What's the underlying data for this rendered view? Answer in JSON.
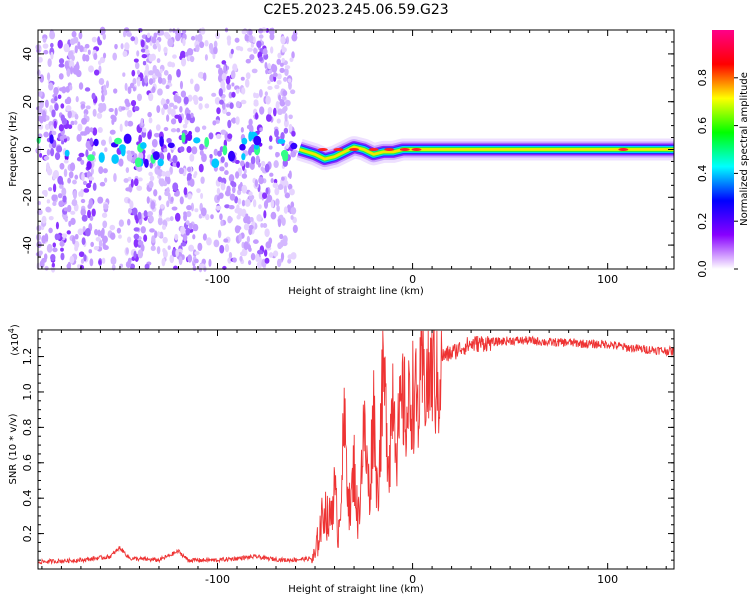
{
  "title": "C2E5.2023.245.06.59.G23",
  "chart_data": [
    {
      "type": "heatmap",
      "xlabel": "Height of straight line (km)",
      "ylabel": "Frequency (Hz)",
      "xlim": [
        -192,
        134
      ],
      "ylim": [
        -50,
        50
      ],
      "x_ticks": [
        -100,
        0,
        100
      ],
      "y_ticks": [
        -40,
        -20,
        0,
        20,
        40
      ],
      "noise_region_x": [
        -192,
        -60
      ],
      "ridge_points": [
        {
          "x": -58,
          "y": 0
        },
        {
          "x": -50,
          "y": -2
        },
        {
          "x": -45,
          "y": -4
        },
        {
          "x": -40,
          "y": -3
        },
        {
          "x": -35,
          "y": -1
        },
        {
          "x": -30,
          "y": 1
        },
        {
          "x": -25,
          "y": 0
        },
        {
          "x": -20,
          "y": -2
        },
        {
          "x": -15,
          "y": -1
        },
        {
          "x": -10,
          "y": -1
        },
        {
          "x": -5,
          "y": 0
        },
        {
          "x": 0,
          "y": 0
        },
        {
          "x": 20,
          "y": 0
        },
        {
          "x": 50,
          "y": 0
        },
        {
          "x": 90,
          "y": 0
        },
        {
          "x": 110,
          "y": 0
        },
        {
          "x": 134,
          "y": 0
        }
      ],
      "colorbar": {
        "label": "Normalized spectral amplitude",
        "range": [
          0,
          1
        ],
        "ticks": [
          "0.0",
          "0.2",
          "0.4",
          "0.6",
          "0.8"
        ],
        "colors": [
          "#ffffff",
          "#8800ff",
          "#0000ff",
          "#00ffff",
          "#00ff00",
          "#ffff00",
          "#ff0000",
          "#ff0088"
        ]
      }
    },
    {
      "type": "line",
      "xlabel": "Height of straight line (km)",
      "ylabel": "SNR (10 * v/v)",
      "scale_note": "(x10",
      "scale_exp": "4",
      "scale_close": ")",
      "xlim": [
        -192,
        134
      ],
      "ylim": [
        0,
        1.35
      ],
      "x_ticks": [
        -100,
        0,
        100
      ],
      "y_ticks": [
        "0.2",
        "0.4",
        "0.6",
        "0.8",
        "1.0",
        "1.2"
      ],
      "color": "#ee3333",
      "series": [
        {
          "x": [
            -192,
            -170,
            -155,
            -150,
            -145,
            -130,
            -120,
            -115,
            -100,
            -80,
            -75,
            -65,
            -50,
            -48,
            -45,
            -43,
            -40,
            -38,
            -35,
            -32,
            -30,
            -28,
            -25,
            -22,
            -20,
            -18,
            -15,
            -12,
            -10,
            -8,
            -5,
            -3,
            0,
            3,
            5,
            8,
            10,
            13,
            15,
            20,
            25,
            30,
            40,
            50,
            60,
            70,
            80,
            90,
            100,
            110,
            120,
            134
          ],
          "y": [
            0.04,
            0.05,
            0.07,
            0.12,
            0.06,
            0.05,
            0.1,
            0.05,
            0.05,
            0.07,
            0.06,
            0.05,
            0.06,
            0.2,
            0.35,
            0.25,
            0.45,
            0.2,
            0.8,
            0.3,
            0.6,
            0.25,
            0.8,
            0.4,
            0.95,
            0.4,
            1.1,
            0.6,
            1.05,
            0.7,
            0.95,
            0.85,
            1.0,
            0.9,
            1.1,
            1.05,
            1.15,
            1.0,
            1.2,
            1.22,
            1.25,
            1.27,
            1.28,
            1.29,
            1.29,
            1.28,
            1.28,
            1.27,
            1.27,
            1.25,
            1.24,
            1.23
          ]
        }
      ]
    }
  ]
}
